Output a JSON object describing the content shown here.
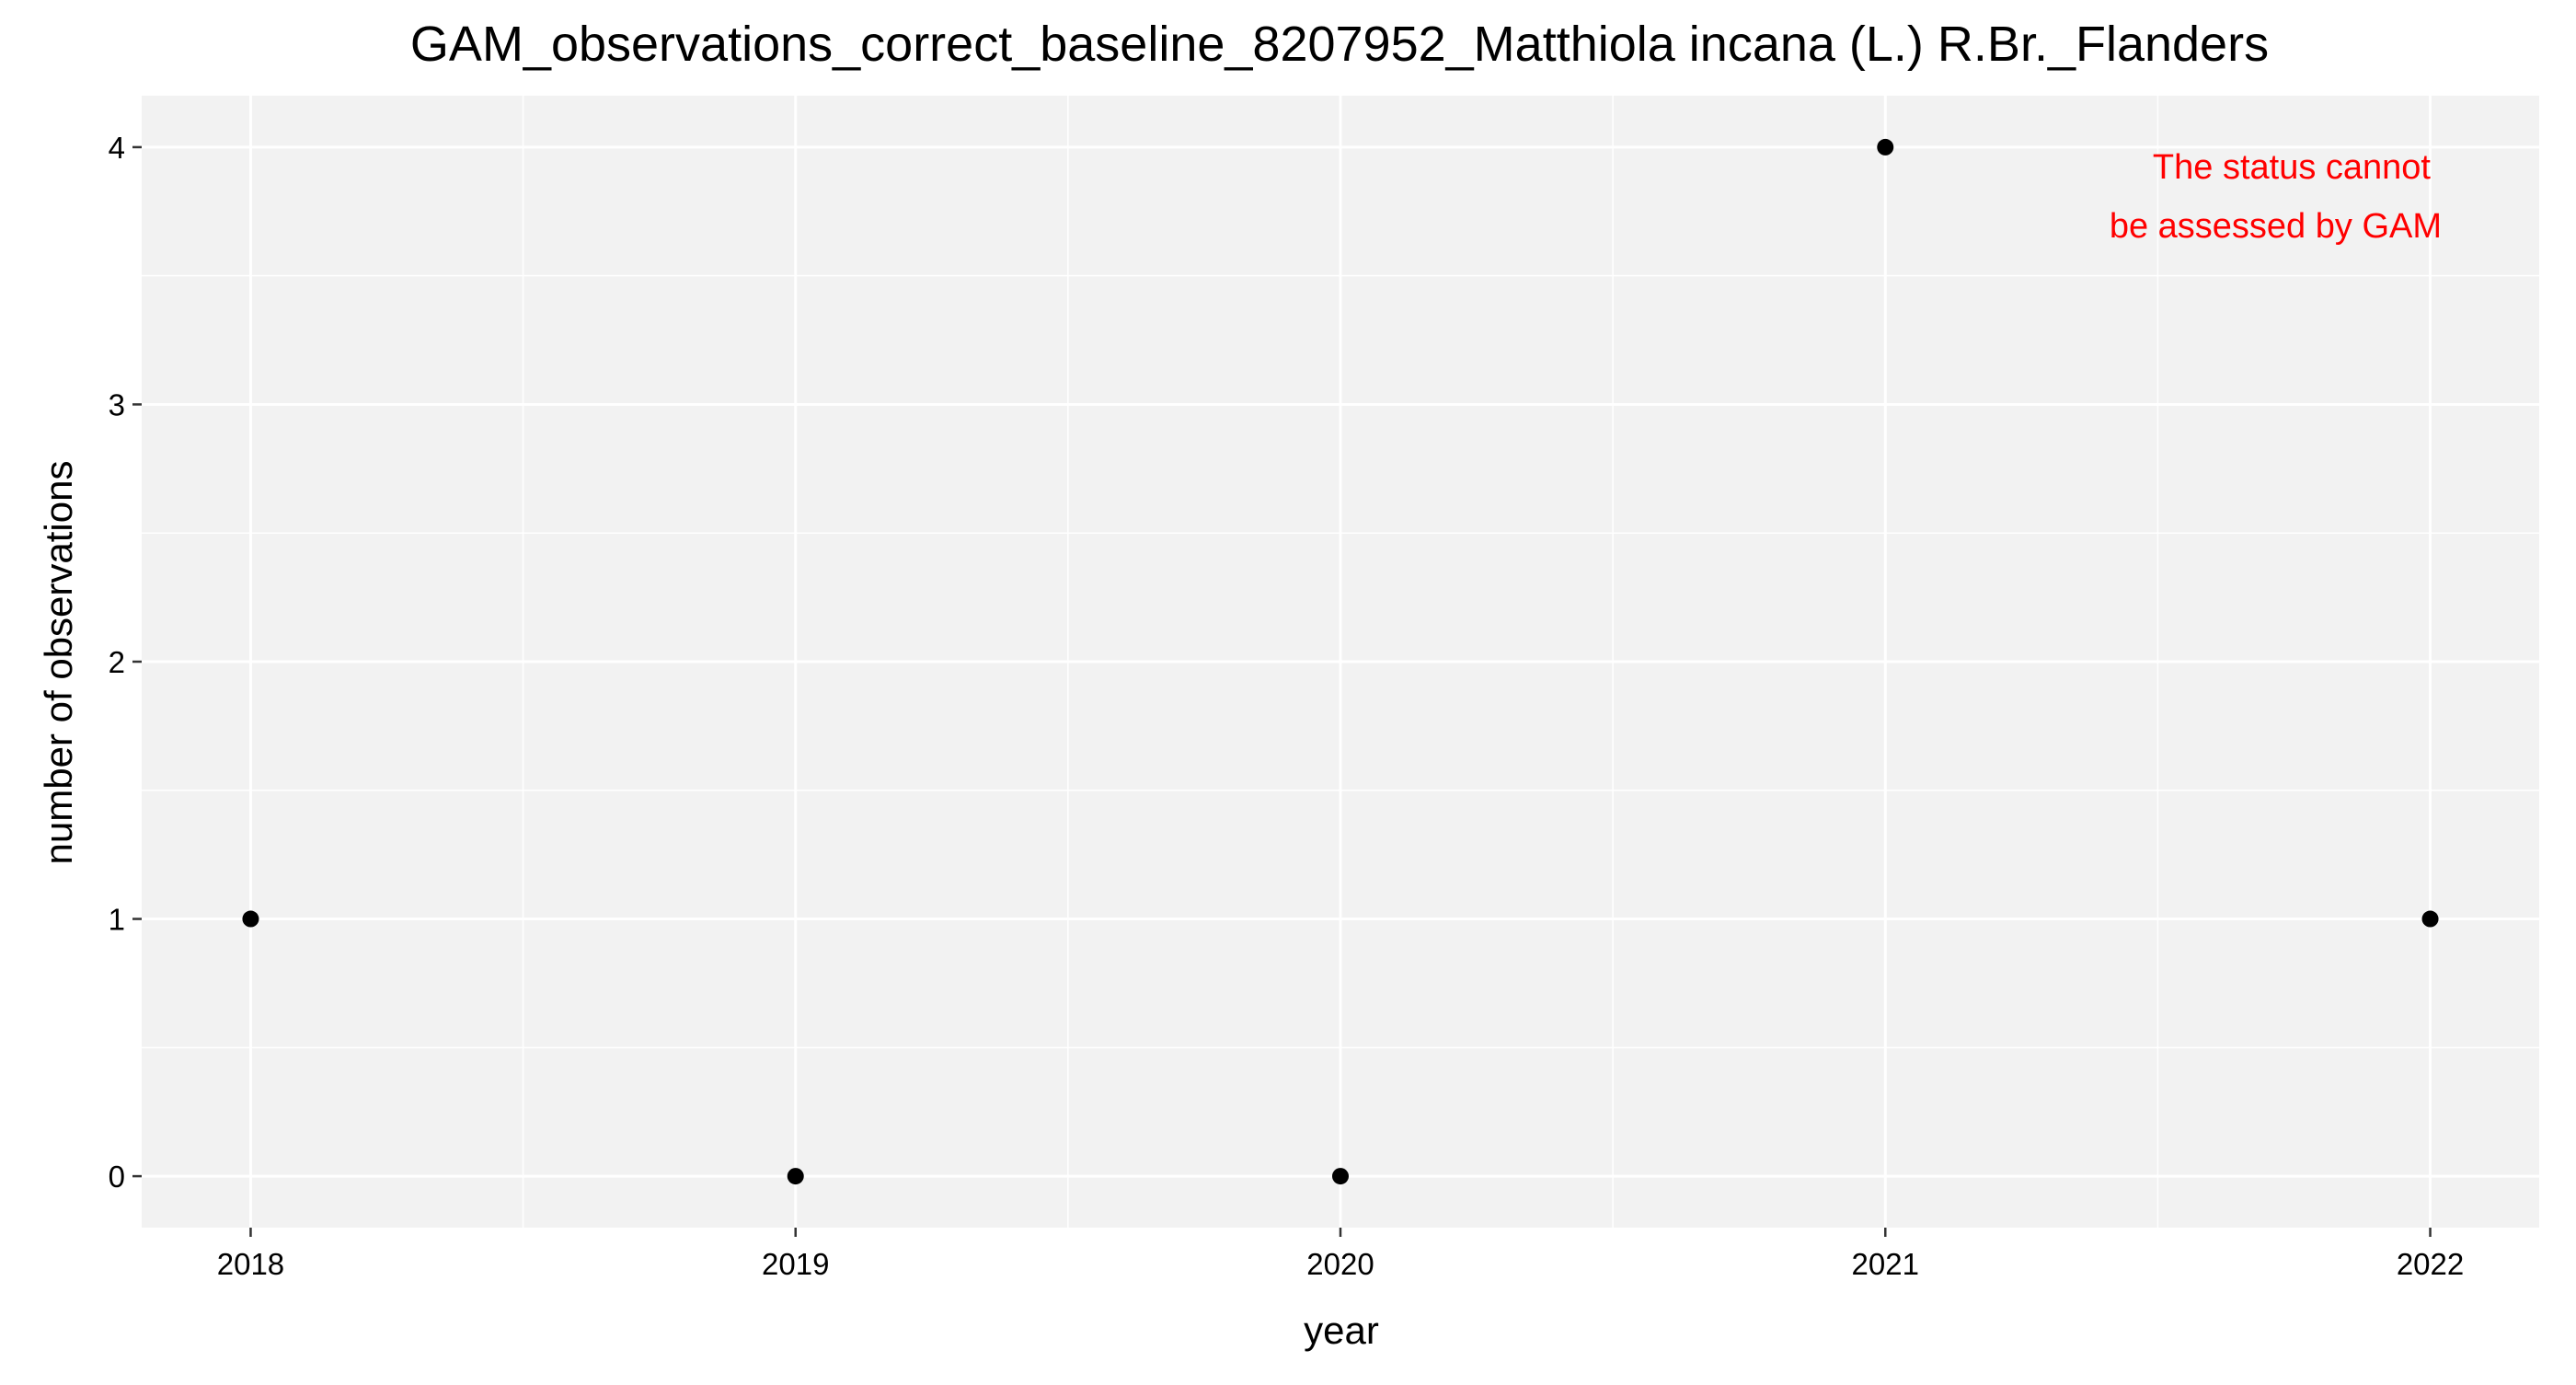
{
  "chart_data": {
    "type": "scatter",
    "title": "GAM_observations_correct_baseline_8207952_Matthiola incana (L.) R.Br._Flanders",
    "xlabel": "year",
    "ylabel": "number of observations",
    "x": [
      2018,
      2019,
      2020,
      2021,
      2022
    ],
    "series": [
      {
        "values": [
          1,
          0,
          0,
          4,
          1
        ]
      }
    ],
    "xlim": [
      2017.8,
      2022.2
    ],
    "ylim": [
      -0.2,
      4.2
    ],
    "x_ticks": [
      2018,
      2019,
      2020,
      2021,
      2022
    ],
    "x_tick_labels": [
      "2018",
      "2019",
      "2020",
      "2021",
      "2022"
    ],
    "y_ticks": [
      0,
      1,
      2,
      3,
      4
    ],
    "y_tick_labels": [
      "0",
      "1",
      "2",
      "3",
      "4"
    ],
    "x_minor_ticks": [
      2018.5,
      2019.5,
      2020.5,
      2021.5
    ],
    "y_minor_ticks": [
      0.5,
      1.5,
      2.5,
      3.5
    ],
    "grid": true,
    "annotation": {
      "lines": [
        "The status cannot",
        "be assessed by GAM"
      ],
      "color": "#ff0000",
      "position": "top-right"
    },
    "colors": {
      "panel_background": "#f2f2f2",
      "grid": "#ffffff",
      "point": "#000000",
      "text": "#000000"
    }
  }
}
